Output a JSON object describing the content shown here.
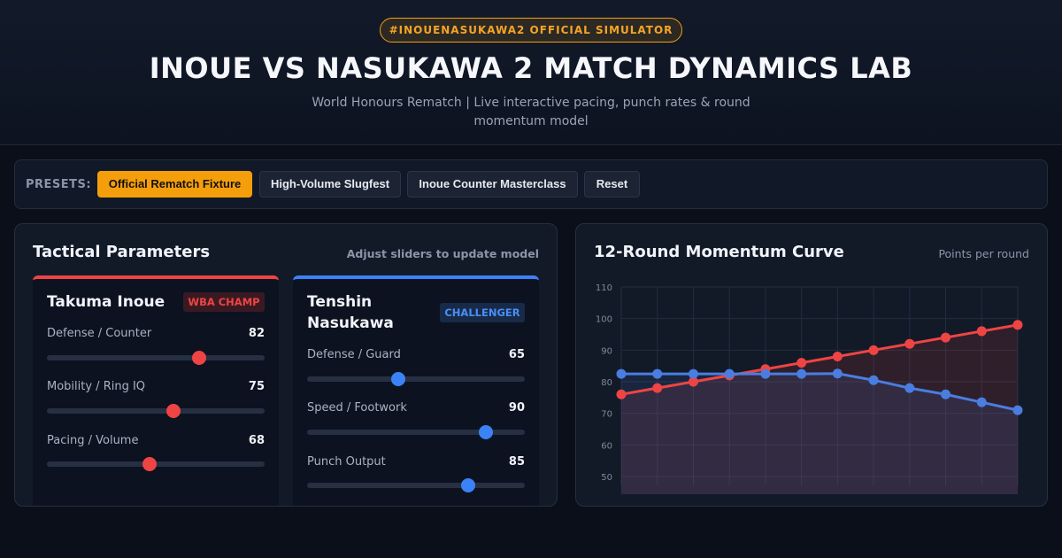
{
  "header": {
    "badge": "#INOUENASUKAWA2 OFFICIAL SIMULATOR",
    "title": "INOUE VS NASUKAWA 2 MATCH DYNAMICS LAB",
    "subtitle": "World Honours Rematch | Live interactive pacing, punch rates & round momentum model"
  },
  "presets": {
    "label": "PRESETS:",
    "buttons": [
      {
        "label": "Official Rematch Fixture",
        "active": true
      },
      {
        "label": "High-Volume Slugfest",
        "active": false
      },
      {
        "label": "Inoue Counter Masterclass",
        "active": false
      },
      {
        "label": "Reset",
        "active": false
      }
    ]
  },
  "params": {
    "title": "Tactical Parameters",
    "note": "Adjust sliders to update model",
    "fighters": [
      {
        "name": "Takuma Inoue",
        "tag": "WBA CHAMP",
        "color": "#ef4444",
        "sliders": [
          {
            "label": "Defense / Counter",
            "value": 82,
            "fill": 0.7
          },
          {
            "label": "Mobility / Ring IQ",
            "value": 75,
            "fill": 0.58
          },
          {
            "label": "Pacing / Volume",
            "value": 68,
            "fill": 0.47
          }
        ]
      },
      {
        "name": "Tenshin Nasukawa",
        "tag": "CHALLENGER",
        "color": "#3b82f6",
        "sliders": [
          {
            "label": "Defense / Guard",
            "value": 65,
            "fill": 0.42
          },
          {
            "label": "Speed / Footwork",
            "value": 90,
            "fill": 0.82
          },
          {
            "label": "Punch Output",
            "value": 85,
            "fill": 0.74
          }
        ]
      }
    ]
  },
  "chart": {
    "title": "12-Round Momentum Curve",
    "note": "Points per round"
  },
  "chart_data": {
    "type": "line",
    "title": "12-Round Momentum Curve",
    "x": [
      1,
      2,
      3,
      4,
      5,
      6,
      7,
      8,
      9,
      10,
      11,
      12
    ],
    "ylim": [
      50,
      110
    ],
    "yticks": [
      50,
      60,
      70,
      80,
      90,
      100,
      110
    ],
    "grid": true,
    "series": [
      {
        "color": "#ef4444",
        "values": [
          76,
          78,
          80,
          82,
          84,
          86,
          88,
          90,
          92,
          94,
          96,
          98
        ]
      },
      {
        "color": "#4a7de0",
        "values": [
          82.5,
          82.5,
          82.5,
          82.5,
          82.5,
          82.5,
          82.6,
          80.5,
          78,
          76,
          73.5,
          71
        ]
      }
    ]
  }
}
